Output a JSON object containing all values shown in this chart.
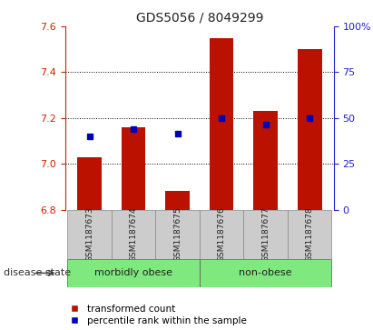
{
  "title": "GDS5056 / 8049299",
  "samples": [
    "GSM1187673",
    "GSM1187674",
    "GSM1187675",
    "GSM1187676",
    "GSM1187677",
    "GSM1187678"
  ],
  "bar_tops": [
    7.03,
    7.16,
    6.88,
    7.55,
    7.23,
    7.5
  ],
  "bar_base": 6.8,
  "blue_values": [
    7.12,
    7.15,
    7.13,
    7.2,
    7.17,
    7.2
  ],
  "ylim_left": [
    6.8,
    7.6
  ],
  "ylim_right": [
    0,
    100
  ],
  "yticks_left": [
    6.8,
    7.0,
    7.2,
    7.4,
    7.6
  ],
  "yticks_right": [
    0,
    25,
    50,
    75,
    100
  ],
  "groups": [
    {
      "label": "morbidly obese",
      "indices": [
        0,
        1,
        2
      ],
      "color": "#7fe87f"
    },
    {
      "label": "non-obese",
      "indices": [
        3,
        4,
        5
      ],
      "color": "#7fe87f"
    }
  ],
  "bar_color": "#bb1100",
  "blue_color": "#0000bb",
  "left_axis_color": "#cc2200",
  "right_axis_color": "#2222cc",
  "title_color": "#222222",
  "legend_red_label": "transformed count",
  "legend_blue_label": "percentile rank within the sample",
  "disease_state_label": "disease state",
  "grid_yticks": [
    7.0,
    7.2,
    7.4
  ],
  "bar_width": 0.55,
  "xlim": [
    -0.55,
    5.55
  ]
}
